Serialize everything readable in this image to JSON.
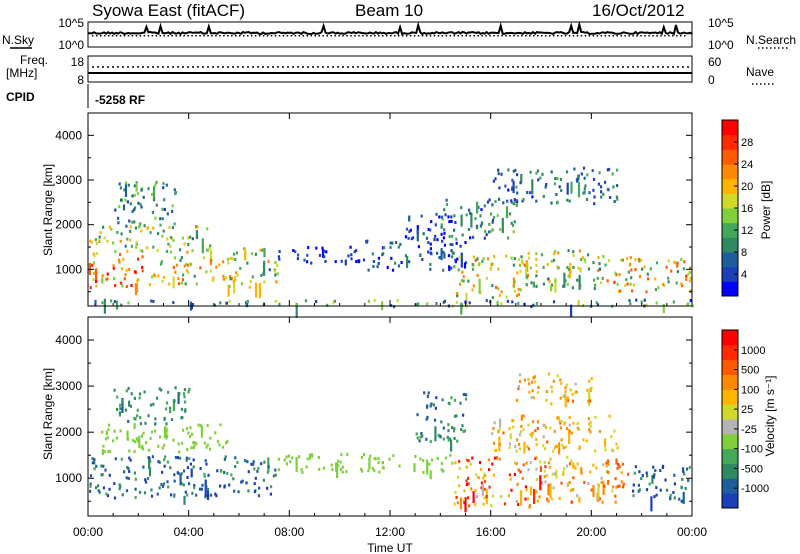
{
  "header": {
    "station": "Syowa East (fitACF)",
    "beam": "Beam 10",
    "date": "16/Oct/2012"
  },
  "noise_panel": {
    "left_label": "N.Sky",
    "right_label": "N.Search",
    "left_ticks": [
      "10^5",
      "10^0"
    ],
    "right_ticks": [
      "10^5",
      "10^0"
    ]
  },
  "freq_panel": {
    "left_label_line1": "Freq.",
    "left_label_line2": "[MHz]",
    "right_label": "Nave",
    "left_ticks": [
      "18",
      "8"
    ],
    "right_ticks": [
      "60",
      "0"
    ]
  },
  "cpid_panel": {
    "label": "CPID",
    "value": "-5258 RF"
  },
  "x_axis": {
    "label": "Time UT",
    "ticks": [
      "00:00",
      "04:00",
      "08:00",
      "12:00",
      "16:00",
      "20:00",
      "00:00"
    ]
  },
  "chart_data": [
    {
      "type": "heatmap",
      "name": "power",
      "ylabel": "Slant Range [km]",
      "yticks": [
        1000,
        2000,
        3000,
        4000
      ],
      "ylim": [
        180,
        4500
      ],
      "xlim_hours": [
        0,
        24
      ],
      "colorbar_label": "Power [dB]",
      "colorbar_ticks": [
        "28",
        "24",
        "20",
        "16",
        "12",
        "8",
        "4"
      ],
      "colorbar_colors": [
        "#0000ff",
        "#1c3fb8",
        "#1d5f9c",
        "#2e8a62",
        "#44a85a",
        "#7fd03a",
        "#d2d828",
        "#ffb400",
        "#ff8a00",
        "#ff5a00",
        "#ff2a00",
        "#ff0000"
      ],
      "regions": [
        {
          "t": [
            0.0,
            2.5
          ],
          "r": [
            600,
            1400
          ],
          "v": [
            14,
            28
          ]
        },
        {
          "t": [
            0.0,
            5.0
          ],
          "r": [
            1400,
            2000
          ],
          "v": [
            8,
            20
          ]
        },
        {
          "t": [
            1.0,
            3.5
          ],
          "r": [
            2000,
            3000
          ],
          "v": [
            6,
            14
          ]
        },
        {
          "t": [
            2.5,
            6.0
          ],
          "r": [
            700,
            1300
          ],
          "v": [
            10,
            24
          ]
        },
        {
          "t": [
            5.5,
            7.5
          ],
          "r": [
            600,
            1500
          ],
          "v": [
            8,
            20
          ]
        },
        {
          "t": [
            7.5,
            11.0
          ],
          "r": [
            1150,
            1550
          ],
          "v": [
            2,
            8
          ]
        },
        {
          "t": [
            11.0,
            15.0
          ],
          "r": [
            1000,
            1700
          ],
          "v": [
            2,
            10
          ]
        },
        {
          "t": [
            12.5,
            14.5
          ],
          "r": [
            1700,
            2300
          ],
          "v": [
            2,
            8
          ]
        },
        {
          "t": [
            14.5,
            17.5
          ],
          "r": [
            400,
            1400
          ],
          "v": [
            8,
            22
          ]
        },
        {
          "t": [
            14.0,
            17.0
          ],
          "r": [
            1700,
            2600
          ],
          "v": [
            4,
            14
          ]
        },
        {
          "t": [
            17.5,
            20.5
          ],
          "r": [
            600,
            1500
          ],
          "v": [
            8,
            20
          ]
        },
        {
          "t": [
            20.5,
            24.0
          ],
          "r": [
            500,
            1300
          ],
          "v": [
            10,
            24
          ]
        },
        {
          "t": [
            16.0,
            21.0
          ],
          "r": [
            2500,
            3300
          ],
          "v": [
            4,
            12
          ]
        },
        {
          "t": [
            0.0,
            24.0
          ],
          "r": [
            200,
            350
          ],
          "v": [
            4,
            16
          ]
        }
      ]
    },
    {
      "type": "heatmap",
      "name": "velocity",
      "ylabel": "Slant Range [km]",
      "yticks": [
        1000,
        2000,
        3000,
        4000
      ],
      "ylim": [
        180,
        4500
      ],
      "xlim_hours": [
        0,
        24
      ],
      "colorbar_label": "Velocity [m s⁻¹]",
      "colorbar_ticks": [
        "1000",
        "500",
        "100",
        "25",
        "-25",
        "-100",
        "-500",
        "-1000"
      ],
      "colorbar_colors": [
        "#1c3fb8",
        "#1d5f9c",
        "#2e8a62",
        "#44a85a",
        "#7fd03a",
        "#b4b4b4",
        "#d2d828",
        "#ffb400",
        "#ff8a00",
        "#ff5a00",
        "#ff2a00",
        "#ff0000"
      ],
      "regions": [
        {
          "t": [
            0.0,
            7.5
          ],
          "r": [
            600,
            1500
          ],
          "v": [
            -500,
            -100
          ]
        },
        {
          "t": [
            0.5,
            5.5
          ],
          "r": [
            1600,
            2200
          ],
          "v": [
            -25,
            25
          ]
        },
        {
          "t": [
            1.0,
            4.0
          ],
          "r": [
            2200,
            3000
          ],
          "v": [
            -300,
            -100
          ]
        },
        {
          "t": [
            7.5,
            14.5
          ],
          "r": [
            1150,
            1550
          ],
          "v": [
            -25,
            25
          ]
        },
        {
          "t": [
            13.0,
            15.0
          ],
          "r": [
            1800,
            2900
          ],
          "v": [
            -400,
            -100
          ]
        },
        {
          "t": [
            14.5,
            18.0
          ],
          "r": [
            400,
            1500
          ],
          "v": [
            100,
            800
          ]
        },
        {
          "t": [
            18.0,
            21.5
          ],
          "r": [
            500,
            1500
          ],
          "v": [
            100,
            600
          ]
        },
        {
          "t": [
            21.5,
            24.0
          ],
          "r": [
            500,
            1300
          ],
          "v": [
            -500,
            -100
          ]
        },
        {
          "t": [
            16.0,
            21.0
          ],
          "r": [
            1600,
            2400
          ],
          "v": [
            100,
            500
          ]
        },
        {
          "t": [
            17.0,
            20.0
          ],
          "r": [
            2600,
            3300
          ],
          "v": [
            100,
            500
          ]
        }
      ]
    }
  ]
}
